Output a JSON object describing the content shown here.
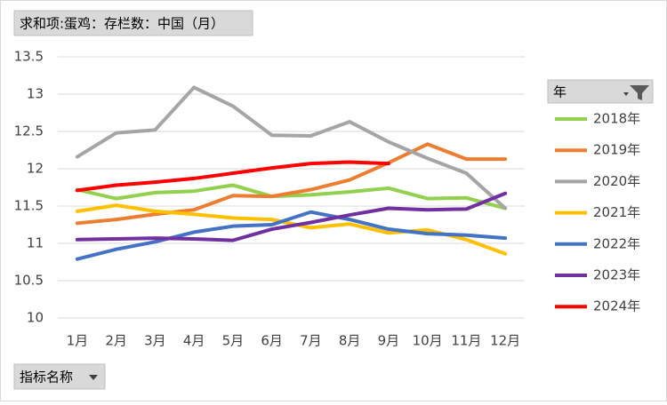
{
  "chart_data": {
    "type": "line",
    "title": "求和项:蛋鸡：存栏数：中国（月）",
    "legend_title": "年",
    "axis_field": "指标名称",
    "categories": [
      "1月",
      "2月",
      "3月",
      "4月",
      "5月",
      "6月",
      "7月",
      "8月",
      "9月",
      "10月",
      "11月",
      "12月"
    ],
    "series": [
      {
        "name": "2018年",
        "color": "#92d050",
        "values": [
          11.72,
          11.6,
          11.68,
          11.7,
          11.78,
          11.63,
          11.65,
          11.69,
          11.74,
          11.6,
          11.61,
          11.47
        ]
      },
      {
        "name": "2019年",
        "color": "#ed7d31",
        "values": [
          11.27,
          11.32,
          11.39,
          11.45,
          11.64,
          11.63,
          11.72,
          11.85,
          12.08,
          12.33,
          12.13,
          12.13
        ]
      },
      {
        "name": "2020年",
        "color": "#a5a5a5",
        "values": [
          12.16,
          12.48,
          12.52,
          13.09,
          12.84,
          12.45,
          12.44,
          12.63,
          12.36,
          12.14,
          11.94,
          11.47
        ]
      },
      {
        "name": "2021年",
        "color": "#ffc000",
        "values": [
          11.43,
          11.51,
          11.43,
          11.39,
          11.34,
          11.32,
          11.21,
          11.26,
          11.14,
          11.18,
          11.05,
          10.86
        ]
      },
      {
        "name": "2022年",
        "color": "#4472c4",
        "values": [
          10.79,
          10.92,
          11.02,
          11.15,
          11.23,
          11.25,
          11.42,
          11.32,
          11.19,
          11.13,
          11.11,
          11.07
        ]
      },
      {
        "name": "2023年",
        "color": "#7030a0",
        "values": [
          11.05,
          11.06,
          11.07,
          11.06,
          11.04,
          11.19,
          11.28,
          11.38,
          11.47,
          11.45,
          11.46,
          11.67
        ]
      },
      {
        "name": "2024年",
        "color": "#ff0000",
        "values": [
          11.71,
          11.78,
          11.82,
          11.87,
          11.94,
          12.01,
          12.07,
          12.09,
          12.07,
          null,
          null,
          null
        ]
      }
    ],
    "ylim": [
      10,
      13.5
    ],
    "yticks": [
      10,
      10.5,
      11,
      11.5,
      12,
      12.5,
      13,
      13.5
    ],
    "grid": true
  }
}
